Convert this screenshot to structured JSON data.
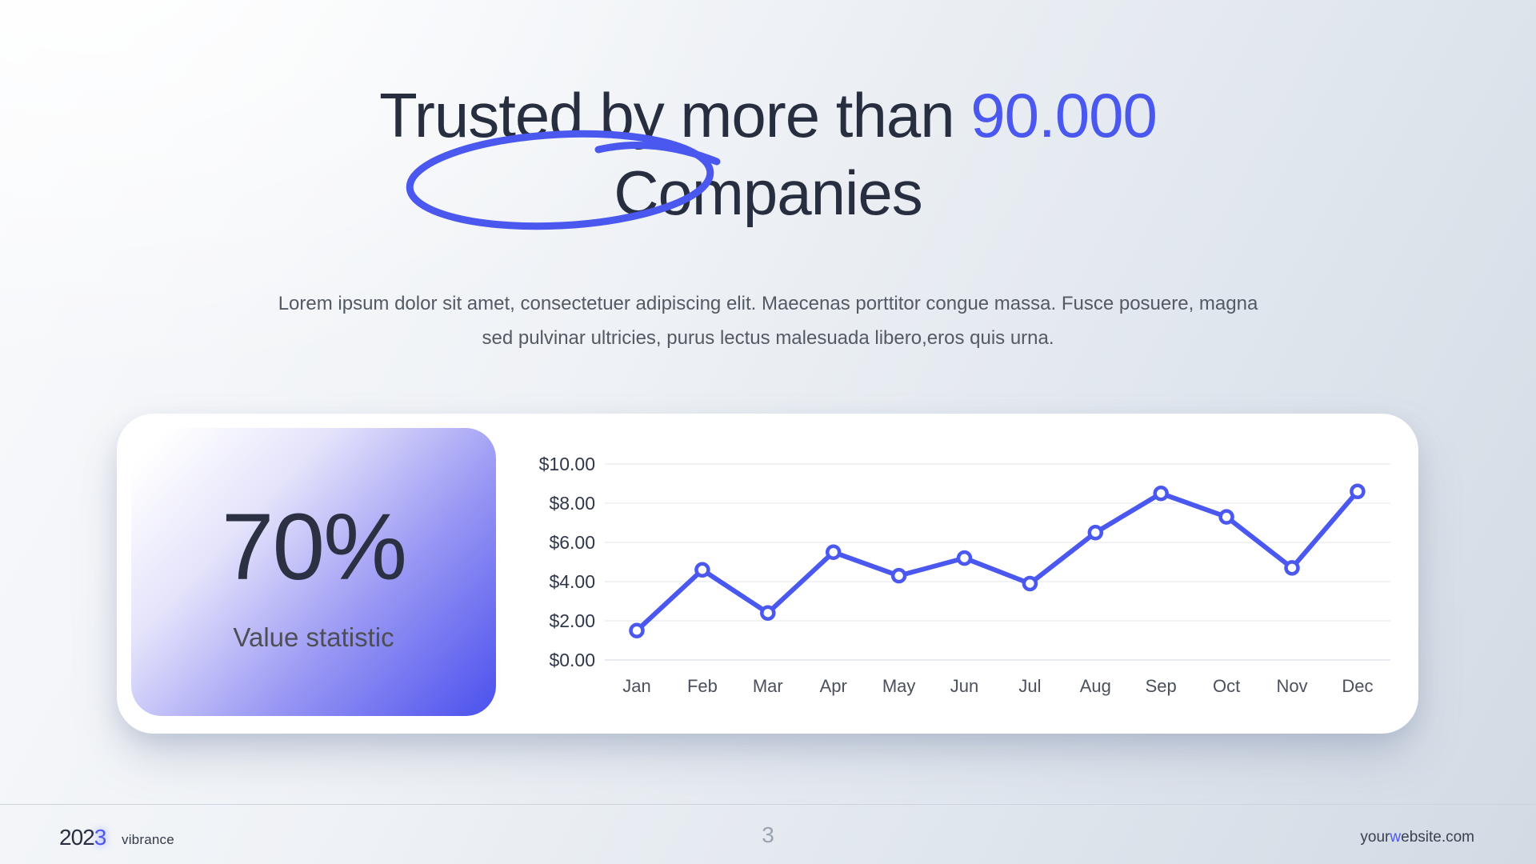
{
  "slide": {
    "title": {
      "line1_prefix": "Trusted by more than ",
      "line1_highlight": "90.000",
      "line2": "Companies"
    },
    "subtitle": {
      "line1": "Lorem ipsum dolor sit amet, consectetuer adipiscing elit. Maecenas porttitor congue massa. Fusce posuere, magna",
      "line2": "sed pulvinar ultricies, purus lectus malesuada libero,eros quis urna."
    },
    "stat": {
      "value": "70%",
      "label": "Value statistic"
    },
    "footer": {
      "year_prefix": "202",
      "year_accent_digit": "3",
      "brand": "vibrance",
      "page_number": "3",
      "website_prefix": "your",
      "website_accent_letter": "w",
      "website_suffix": "ebsite.com"
    }
  },
  "colors": {
    "accent": "#4A58F0",
    "title_text": "#272E3F",
    "body_text": "#535A64",
    "card_background": "#FFFFFF",
    "stat_gradient_end": "#5156EE",
    "grid_line": "#EBEDF0",
    "axis_base_line": "#DFE3E8",
    "y_tick_text": "#30374A",
    "x_tick_text": "#4B505D",
    "page_number_text": "#9AA3B1"
  },
  "chart_data": {
    "type": "line",
    "title": "",
    "xlabel": "",
    "ylabel": "",
    "categories": [
      "Jan",
      "Feb",
      "Mar",
      "Apr",
      "May",
      "Jun",
      "Jul",
      "Aug",
      "Sep",
      "Oct",
      "Nov",
      "Dec"
    ],
    "values": [
      1.5,
      4.6,
      2.4,
      5.5,
      4.3,
      5.2,
      3.9,
      6.5,
      8.5,
      7.3,
      4.7,
      8.6
    ],
    "y_ticks": [
      "$0.00",
      "$2.00",
      "$4.00",
      "$6.00",
      "$8.00",
      "$10.00"
    ],
    "y_tick_values": [
      0,
      2,
      4,
      6,
      8,
      10
    ],
    "ylim": [
      0,
      10
    ],
    "grid": true,
    "legend": false,
    "line_color": "#4A58F0",
    "marker": "open-circle"
  }
}
